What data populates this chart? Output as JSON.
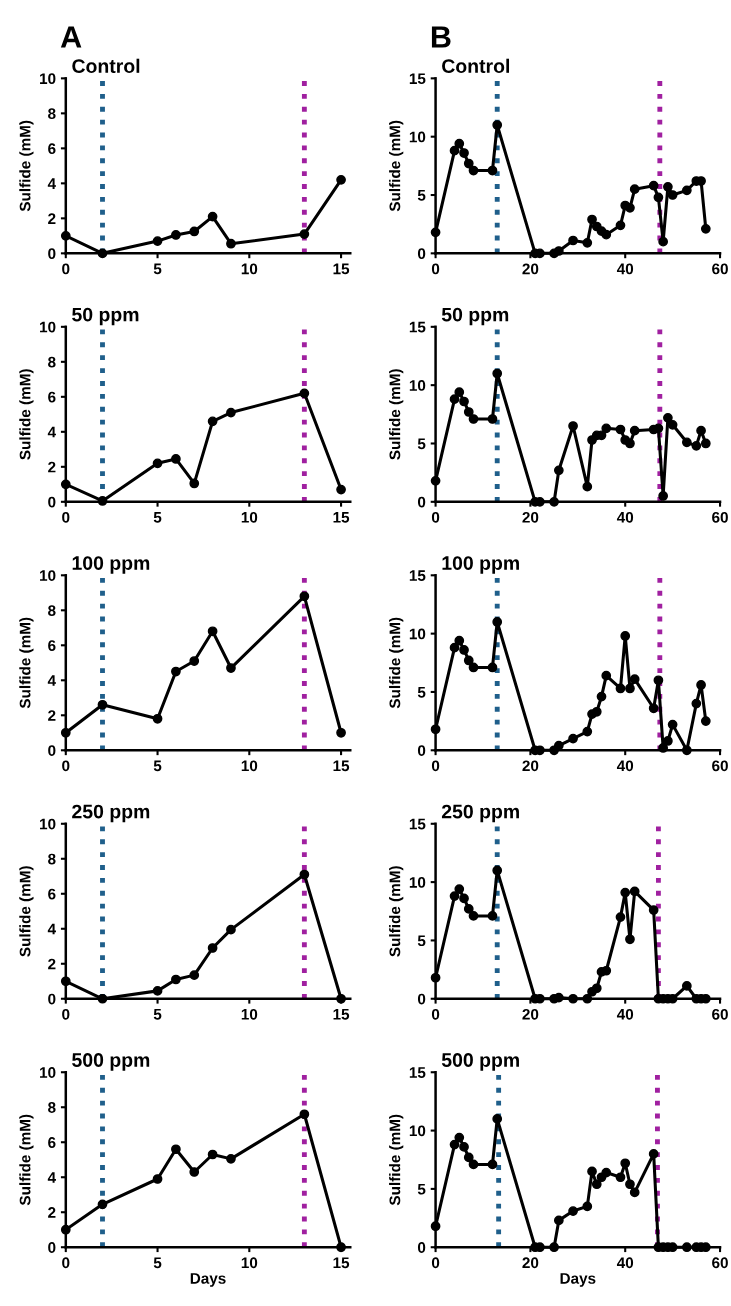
{
  "chart_data": [
    {
      "type": "line",
      "title": "Control",
      "ylabel": "Sulfide (mM)",
      "annotations": [
        "A"
      ],
      "xlim": [
        0,
        15.5
      ],
      "xticks": [
        0,
        5,
        10,
        15
      ],
      "ylim": [
        0,
        10
      ],
      "yticks": [
        0,
        2,
        4,
        6,
        8,
        10
      ],
      "marker": "circle",
      "line_style": "solid",
      "grid": false,
      "x": [
        0,
        2,
        5,
        6,
        7,
        8,
        9,
        13,
        15
      ],
      "series": [
        {
          "color": "#000000",
          "values": [
            1.0,
            0,
            0.7,
            1.05,
            1.25,
            2.1,
            0.55,
            1.1,
            4.2
          ]
        }
      ],
      "ref_lines": [
        {
          "axis": "x",
          "value": 2,
          "color": "#1f5f8b",
          "line_style": "dotted"
        },
        {
          "axis": "x",
          "value": 13,
          "color": "#a020a0",
          "line_style": "dotted"
        }
      ]
    },
    {
      "type": "line",
      "title": "50 ppm",
      "ylabel": "Sulfide (mM)",
      "xlim": [
        0,
        15.5
      ],
      "xticks": [
        0,
        5,
        10,
        15
      ],
      "ylim": [
        0,
        10
      ],
      "yticks": [
        0,
        2,
        4,
        6,
        8,
        10
      ],
      "marker": "circle",
      "line_style": "solid",
      "grid": false,
      "x": [
        0,
        2,
        5,
        6,
        7,
        8,
        9,
        13,
        15
      ],
      "series": [
        {
          "color": "#000000",
          "values": [
            1.0,
            0.05,
            2.2,
            2.45,
            1.05,
            4.6,
            5.1,
            6.2,
            0.7
          ]
        }
      ],
      "ref_lines": [
        {
          "axis": "x",
          "value": 2,
          "color": "#1f5f8b",
          "line_style": "dotted"
        },
        {
          "axis": "x",
          "value": 13,
          "color": "#a020a0",
          "line_style": "dotted"
        }
      ]
    },
    {
      "type": "line",
      "title": "100 ppm",
      "ylabel": "Sulfide (mM)",
      "xlim": [
        0,
        15.5
      ],
      "xticks": [
        0,
        5,
        10,
        15
      ],
      "ylim": [
        0,
        10
      ],
      "yticks": [
        0,
        2,
        4,
        6,
        8,
        10
      ],
      "marker": "circle",
      "line_style": "solid",
      "grid": false,
      "x": [
        0,
        2,
        5,
        6,
        7,
        8,
        9,
        13,
        15
      ],
      "series": [
        {
          "color": "#000000",
          "values": [
            1.0,
            2.6,
            1.8,
            4.5,
            5.1,
            6.8,
            4.7,
            8.8,
            1.0
          ]
        }
      ],
      "ref_lines": [
        {
          "axis": "x",
          "value": 2,
          "color": "#1f5f8b",
          "line_style": "dotted"
        },
        {
          "axis": "x",
          "value": 13,
          "color": "#a020a0",
          "line_style": "dotted"
        }
      ]
    },
    {
      "type": "line",
      "title": "250 ppm",
      "ylabel": "Sulfide (mM)",
      "xlim": [
        0,
        15.5
      ],
      "xticks": [
        0,
        5,
        10,
        15
      ],
      "ylim": [
        0,
        10
      ],
      "yticks": [
        0,
        2,
        4,
        6,
        8,
        10
      ],
      "marker": "circle",
      "line_style": "solid",
      "grid": false,
      "x": [
        0,
        2,
        5,
        6,
        7,
        8,
        9,
        13,
        15
      ],
      "series": [
        {
          "color": "#000000",
          "values": [
            1.0,
            0,
            0.45,
            1.1,
            1.35,
            2.9,
            3.95,
            7.1,
            0
          ]
        }
      ],
      "ref_lines": [
        {
          "axis": "x",
          "value": 2,
          "color": "#1f5f8b",
          "line_style": "dotted"
        },
        {
          "axis": "x",
          "value": 13,
          "color": "#a020a0",
          "line_style": "dotted"
        }
      ]
    },
    {
      "type": "line",
      "title": "500 ppm",
      "ylabel": "Sulfide (mM)",
      "xlabel": "Days",
      "xlim": [
        0,
        15.5
      ],
      "xticks": [
        0,
        5,
        10,
        15
      ],
      "ylim": [
        0,
        10
      ],
      "yticks": [
        0,
        2,
        4,
        6,
        8,
        10
      ],
      "marker": "circle",
      "line_style": "solid",
      "grid": false,
      "x": [
        0,
        2,
        5,
        6,
        7,
        8,
        9,
        13,
        15
      ],
      "series": [
        {
          "color": "#000000",
          "values": [
            1.0,
            2.45,
            3.9,
            5.6,
            4.3,
            5.3,
            5.05,
            7.6,
            0
          ]
        }
      ],
      "ref_lines": [
        {
          "axis": "x",
          "value": 2,
          "color": "#1f5f8b",
          "line_style": "dotted"
        },
        {
          "axis": "x",
          "value": 13,
          "color": "#a020a0",
          "line_style": "dotted"
        }
      ]
    },
    {
      "type": "line",
      "title": "Control",
      "ylabel": "Sulfide (mM)",
      "annotations": [
        "B"
      ],
      "xlim": [
        0,
        60
      ],
      "xticks": [
        0,
        20,
        40,
        60
      ],
      "ylim": [
        0,
        15
      ],
      "yticks": [
        0,
        5,
        10,
        15
      ],
      "marker": "circle",
      "line_style": "solid",
      "grid": false,
      "x": [
        0,
        4,
        5,
        6,
        7,
        8,
        12,
        13,
        21,
        22,
        25,
        26,
        29,
        32,
        33,
        34,
        35,
        36,
        39,
        40,
        41,
        42,
        46,
        47,
        48,
        49,
        50,
        53,
        55,
        56,
        57
      ],
      "series": [
        {
          "color": "#000000",
          "values": [
            1.8,
            8.8,
            9.4,
            8.6,
            7.7,
            7.1,
            7.1,
            11.0,
            0,
            0,
            0,
            0.2,
            1.1,
            0.9,
            2.9,
            2.3,
            1.9,
            1.6,
            2.4,
            4.1,
            3.9,
            5.5,
            5.8,
            4.8,
            1.0,
            5.7,
            5.0,
            5.4,
            6.2,
            6.2,
            2.1
          ]
        }
      ],
      "ref_lines": [
        {
          "axis": "x",
          "value": 13,
          "color": "#1f5f8b",
          "line_style": "dotted"
        },
        {
          "axis": "x",
          "value": 47.3,
          "color": "#a020a0",
          "line_style": "dotted"
        }
      ]
    },
    {
      "type": "line",
      "title": "50 ppm",
      "ylabel": "Sulfide (mM)",
      "xlim": [
        0,
        60
      ],
      "xticks": [
        0,
        20,
        40,
        60
      ],
      "ylim": [
        0,
        15
      ],
      "yticks": [
        0,
        5,
        10,
        15
      ],
      "marker": "circle",
      "line_style": "solid",
      "grid": false,
      "x": [
        0,
        4,
        5,
        6,
        7,
        8,
        12,
        13,
        21,
        22,
        25,
        26,
        29,
        32,
        33,
        34,
        35,
        36,
        39,
        40,
        41,
        42,
        46,
        47,
        48,
        49,
        50,
        53,
        55,
        56,
        57
      ],
      "series": [
        {
          "color": "#000000",
          "values": [
            1.8,
            8.8,
            9.4,
            8.6,
            7.7,
            7.1,
            7.1,
            11.0,
            0,
            0,
            0,
            2.7,
            6.5,
            1.3,
            5.3,
            5.7,
            5.7,
            6.3,
            6.2,
            5.3,
            5.0,
            6.1,
            6.2,
            6.3,
            0.5,
            7.2,
            6.6,
            5.1,
            4.8,
            6.1,
            5.0
          ]
        }
      ],
      "ref_lines": [
        {
          "axis": "x",
          "value": 13,
          "color": "#1f5f8b",
          "line_style": "dotted"
        },
        {
          "axis": "x",
          "value": 47.3,
          "color": "#a020a0",
          "line_style": "dotted"
        }
      ]
    },
    {
      "type": "line",
      "title": "100 ppm",
      "ylabel": "Sulfide (mM)",
      "xlim": [
        0,
        60
      ],
      "xticks": [
        0,
        20,
        40,
        60
      ],
      "ylim": [
        0,
        15
      ],
      "yticks": [
        0,
        5,
        10,
        15
      ],
      "marker": "circle",
      "line_style": "solid",
      "grid": false,
      "x": [
        0,
        4,
        5,
        6,
        7,
        8,
        12,
        13,
        21,
        22,
        25,
        26,
        29,
        32,
        33,
        34,
        35,
        36,
        39,
        40,
        41,
        42,
        46,
        47,
        48,
        49,
        50,
        53,
        55,
        56,
        57
      ],
      "series": [
        {
          "color": "#000000",
          "values": [
            1.8,
            8.8,
            9.4,
            8.6,
            7.7,
            7.1,
            7.1,
            11.0,
            0,
            0,
            0,
            0.4,
            1.0,
            1.6,
            3.1,
            3.3,
            4.6,
            6.4,
            5.3,
            9.8,
            5.3,
            6.1,
            3.6,
            6.0,
            0.2,
            0.8,
            2.2,
            0,
            4.0,
            5.6,
            2.5
          ]
        }
      ],
      "ref_lines": [
        {
          "axis": "x",
          "value": 13,
          "color": "#1f5f8b",
          "line_style": "dotted"
        },
        {
          "axis": "x",
          "value": 47.3,
          "color": "#a020a0",
          "line_style": "dotted"
        }
      ]
    },
    {
      "type": "line",
      "title": "250 ppm",
      "ylabel": "Sulfide (mM)",
      "xlim": [
        0,
        60
      ],
      "xticks": [
        0,
        20,
        40,
        60
      ],
      "ylim": [
        0,
        15
      ],
      "yticks": [
        0,
        5,
        10,
        15
      ],
      "marker": "circle",
      "line_style": "solid",
      "grid": false,
      "x": [
        0,
        4,
        5,
        6,
        7,
        8,
        12,
        13,
        21,
        22,
        25,
        26,
        29,
        32,
        33,
        34,
        35,
        36,
        39,
        40,
        41,
        42,
        46,
        47,
        48,
        49,
        50,
        53,
        55,
        56,
        57
      ],
      "series": [
        {
          "color": "#000000",
          "values": [
            1.8,
            8.8,
            9.4,
            8.6,
            7.7,
            7.1,
            7.1,
            11.0,
            0,
            0,
            0,
            0.1,
            0,
            0,
            0.6,
            0.9,
            2.3,
            2.4,
            7.0,
            9.1,
            5.1,
            9.2,
            7.6,
            0,
            0,
            0,
            0,
            1.1,
            0,
            0,
            0
          ]
        }
      ],
      "ref_lines": [
        {
          "axis": "x",
          "value": 13,
          "color": "#1f5f8b",
          "line_style": "dotted"
        },
        {
          "axis": "x",
          "value": 47,
          "color": "#a020a0",
          "line_style": "dotted"
        }
      ]
    },
    {
      "type": "line",
      "title": "500 ppm",
      "ylabel": "Sulfide (mM)",
      "xlabel": "Days",
      "xlim": [
        0,
        60
      ],
      "xticks": [
        0,
        20,
        40,
        60
      ],
      "ylim": [
        0,
        15
      ],
      "yticks": [
        0,
        5,
        10,
        15
      ],
      "marker": "circle",
      "line_style": "solid",
      "grid": false,
      "x": [
        0,
        4,
        5,
        6,
        7,
        8,
        12,
        13,
        21,
        22,
        25,
        26,
        29,
        32,
        33,
        34,
        35,
        36,
        39,
        40,
        41,
        42,
        46,
        47,
        48,
        49,
        50,
        53,
        55,
        56,
        57
      ],
      "series": [
        {
          "color": "#000000",
          "values": [
            1.8,
            8.8,
            9.4,
            8.6,
            7.7,
            7.1,
            7.1,
            11.0,
            0,
            0,
            0,
            2.3,
            3.1,
            3.5,
            6.5,
            5.4,
            6.0,
            6.4,
            6.0,
            7.2,
            5.4,
            4.7,
            8.0,
            0,
            0,
            0,
            0,
            0,
            0,
            0,
            0
          ]
        }
      ],
      "ref_lines": [
        {
          "axis": "x",
          "value": 13.3,
          "color": "#1f5f8b",
          "line_style": "dotted"
        },
        {
          "axis": "x",
          "value": 46.8,
          "color": "#a020a0",
          "line_style": "dotted"
        }
      ]
    }
  ]
}
